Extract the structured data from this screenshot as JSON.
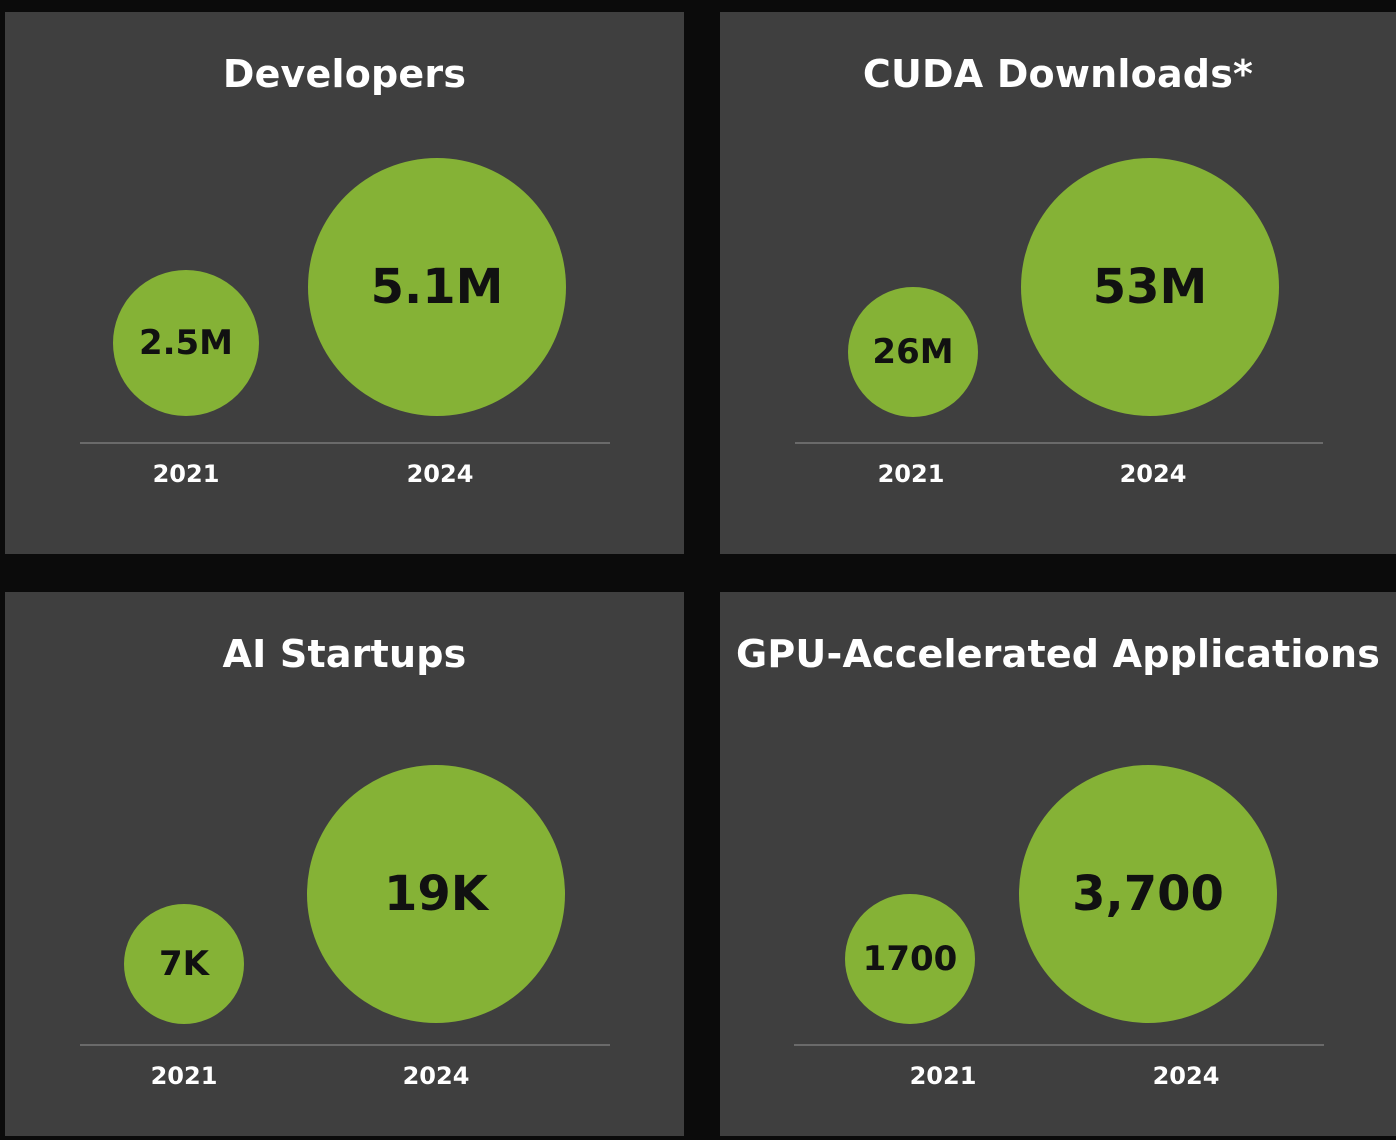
{
  "colors": {
    "page_bg": "#0b0b0b",
    "panel_bg": "#3f3f3f",
    "bubble": "#85b236",
    "bubble_text": "#111111",
    "title_text": "#ffffff",
    "axis_line": "#6a6a6a"
  },
  "chart_data": [
    {
      "type": "bubble",
      "title": "Developers",
      "categories": [
        "2021",
        "2024"
      ],
      "values": [
        2.5,
        5.1
      ],
      "value_unit": "M",
      "data_labels": [
        "2.5M",
        "5.1M"
      ]
    },
    {
      "type": "bubble",
      "title": "CUDA Downloads*",
      "categories": [
        "2021",
        "2024"
      ],
      "values": [
        26,
        53
      ],
      "value_unit": "M",
      "data_labels": [
        "26M",
        "53M"
      ]
    },
    {
      "type": "bubble",
      "title": "AI Startups",
      "categories": [
        "2021",
        "2024"
      ],
      "values": [
        7,
        19
      ],
      "value_unit": "K",
      "data_labels": [
        "7K",
        "19K"
      ]
    },
    {
      "type": "bubble",
      "title": "GPU-Accelerated Applications",
      "categories": [
        "2021",
        "2024"
      ],
      "values": [
        1700,
        3700
      ],
      "data_labels": [
        "1700",
        "3,700"
      ]
    }
  ]
}
